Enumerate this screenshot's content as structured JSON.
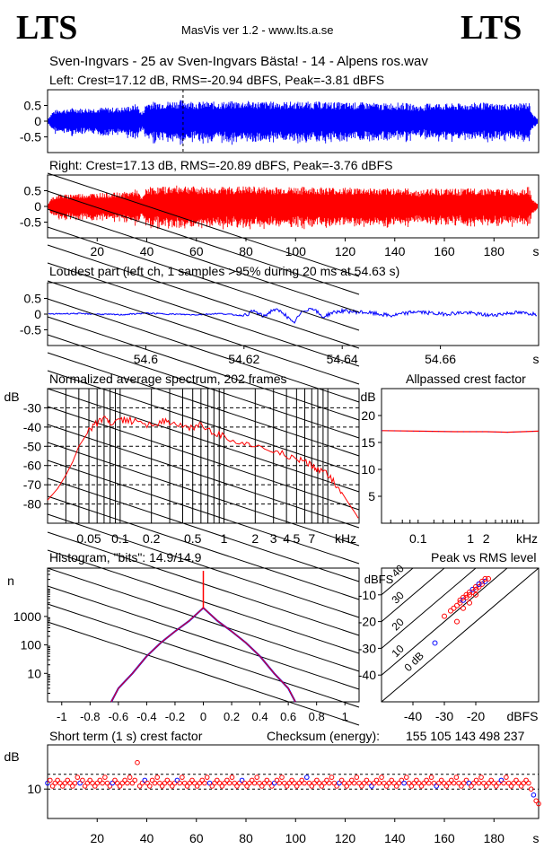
{
  "header": {
    "logo_left": "LTS",
    "logo_right": "LTS",
    "app": "MasVis ver 1.2 - www.lts.a.se",
    "track_title": "Sven-Ingvars - 25 av Sven-Ingvars Bästa! - 14 - Alpens ros.wav"
  },
  "colors": {
    "left": "#0000ff",
    "right": "#ff0000",
    "axis": "#000000"
  },
  "chart_data": [
    {
      "type": "area",
      "id": "left_waveform",
      "title": "Left: Crest=17.12 dB, RMS=-20.94 dBFS, Peak=-3.81 dBFS",
      "y_ticks": [
        "0.5",
        "0",
        "-0.5"
      ],
      "ylim": [
        -1,
        1
      ],
      "xlim": [
        0,
        198
      ],
      "marker_time_s": 54.63,
      "envelope": {
        "t": [
          0,
          2,
          4,
          6,
          8,
          10,
          14,
          18,
          22,
          26,
          30,
          34,
          36,
          38,
          40,
          44,
          50,
          55,
          60,
          70,
          80,
          90,
          100,
          110,
          120,
          130,
          135,
          140,
          145,
          150,
          155,
          160,
          165,
          170,
          175,
          180,
          185,
          190,
          194,
          196,
          198
        ],
        "amp": [
          0.05,
          0.25,
          0.3,
          0.32,
          0.3,
          0.34,
          0.33,
          0.34,
          0.35,
          0.35,
          0.36,
          0.4,
          0.45,
          0.2,
          0.5,
          0.5,
          0.52,
          0.55,
          0.5,
          0.5,
          0.52,
          0.5,
          0.5,
          0.5,
          0.48,
          0.48,
          0.45,
          0.48,
          0.46,
          0.4,
          0.48,
          0.45,
          0.45,
          0.46,
          0.48,
          0.45,
          0.45,
          0.45,
          0.5,
          0.15,
          0.05
        ]
      }
    },
    {
      "type": "area",
      "id": "right_waveform",
      "title": "Right: Crest=17.13 dB, RMS=-20.89 dBFS, Peak=-3.76 dBFS",
      "y_ticks": [
        "0.5",
        "0",
        "-0.5"
      ],
      "ylim": [
        -1,
        1
      ],
      "x_ticks": [
        "20",
        "40",
        "60",
        "80",
        "100",
        "120",
        "140",
        "160",
        "180"
      ],
      "x_unit": "s",
      "xlim": [
        0,
        198
      ],
      "envelope": {
        "t": [
          0,
          2,
          4,
          6,
          8,
          10,
          14,
          18,
          22,
          26,
          30,
          34,
          36,
          38,
          40,
          44,
          50,
          55,
          60,
          70,
          80,
          90,
          100,
          110,
          120,
          130,
          135,
          140,
          145,
          150,
          155,
          160,
          165,
          170,
          175,
          180,
          185,
          190,
          194,
          196,
          198
        ],
        "amp": [
          0.05,
          0.25,
          0.3,
          0.32,
          0.3,
          0.34,
          0.33,
          0.34,
          0.35,
          0.35,
          0.36,
          0.4,
          0.45,
          0.2,
          0.5,
          0.5,
          0.52,
          0.55,
          0.5,
          0.5,
          0.52,
          0.5,
          0.5,
          0.5,
          0.48,
          0.48,
          0.45,
          0.48,
          0.46,
          0.4,
          0.48,
          0.45,
          0.45,
          0.46,
          0.48,
          0.45,
          0.45,
          0.45,
          0.5,
          0.15,
          0.05
        ]
      }
    },
    {
      "type": "line",
      "id": "loudest_part",
      "title": "Loudest part (left  ch, 1 samples >95% during 20 ms at 54.63 s)",
      "y_ticks": [
        "0.5",
        "0",
        "-0.5"
      ],
      "ylim": [
        -1,
        1
      ],
      "x_ticks": [
        "54.6",
        "54.62",
        "54.64",
        "54.66"
      ],
      "x_unit": "s",
      "xlim": [
        54.58,
        54.68
      ],
      "x": [
        54.58,
        54.585,
        54.59,
        54.595,
        54.6,
        54.605,
        54.61,
        54.615,
        54.62,
        54.622,
        54.624,
        54.626,
        54.628,
        54.63,
        54.632,
        54.634,
        54.636,
        54.638,
        54.64,
        54.645,
        54.65,
        54.655,
        54.66,
        54.665,
        54.67,
        54.675,
        54.68
      ],
      "y": [
        0.0,
        0.02,
        0.0,
        -0.02,
        0.03,
        0.0,
        -0.02,
        0.02,
        -0.05,
        0.1,
        -0.08,
        0.15,
        0.05,
        -0.3,
        0.1,
        0.2,
        -0.1,
        0.05,
        0.1,
        0.05,
        -0.05,
        0.08,
        0.0,
        0.05,
        -0.04,
        0.05,
        0.0
      ]
    },
    {
      "type": "line",
      "id": "avg_spectrum",
      "title": "Normalized average spectrum, 202 frames",
      "ylabel": "dB",
      "y_ticks": [
        "-30",
        "-40",
        "-50",
        "-60",
        "-70",
        "-80"
      ],
      "ylim": [
        -90,
        -20
      ],
      "x_scale": "log",
      "x_ticks": [
        "0.05",
        "0.1",
        "0.2",
        "0.5",
        "1",
        "2",
        "3",
        "4",
        "5",
        "7"
      ],
      "x_unit": "kHz",
      "xlim": [
        0.02,
        20
      ],
      "x": [
        0.02,
        0.025,
        0.03,
        0.035,
        0.04,
        0.05,
        0.06,
        0.07,
        0.08,
        0.1,
        0.12,
        0.15,
        0.2,
        0.25,
        0.3,
        0.4,
        0.5,
        0.6,
        0.8,
        1,
        1.5,
        2,
        3,
        4,
        5,
        6,
        7,
        8,
        10,
        12,
        14,
        16,
        18,
        20
      ],
      "y": [
        -78,
        -72,
        -65,
        -58,
        -50,
        -42,
        -38,
        -36,
        -38,
        -37,
        -36,
        -38,
        -39,
        -37,
        -38,
        -40,
        -40,
        -39,
        -43,
        -45,
        -48,
        -50,
        -52,
        -55,
        -57,
        -58,
        -60,
        -62,
        -65,
        -70,
        -75,
        -80,
        -84,
        -88
      ]
    },
    {
      "type": "line",
      "id": "allpassed_crest",
      "title": "Allpassed crest factor",
      "ylabel": "dB",
      "y_ticks": [
        "20",
        "15",
        "10",
        "5"
      ],
      "ylim": [
        0,
        25
      ],
      "x_scale": "log",
      "x_ticks": [
        "0.1",
        "1",
        "2"
      ],
      "x_unit": "kHz",
      "xlim": [
        0.02,
        20
      ],
      "series": [
        {
          "x": [
            0.02,
            0.1,
            0.5,
            1,
            2,
            5,
            10,
            20
          ],
          "y": [
            17.2,
            17.1,
            17.0,
            17.0,
            17.0,
            16.9,
            17.0,
            17.1
          ]
        }
      ]
    },
    {
      "type": "line",
      "id": "histogram",
      "title": "Histogram, \"bits\": 14.9/14.9",
      "ylabel": "n",
      "y_scale": "log",
      "y_ticks": [
        "1000",
        "100",
        "10"
      ],
      "ylim": [
        1,
        50000
      ],
      "x_ticks": [
        "-1",
        "-0.8",
        "-0.6",
        "-0.4",
        "-0.2",
        "0",
        "0.2",
        "0.4",
        "0.6",
        "0.8",
        "1"
      ],
      "xlim": [
        -1.1,
        1.1
      ],
      "x": [
        -0.65,
        -0.6,
        -0.5,
        -0.4,
        -0.3,
        -0.2,
        -0.1,
        0,
        0.1,
        0.2,
        0.3,
        0.4,
        0.5,
        0.6,
        0.65
      ],
      "y": [
        1,
        3,
        10,
        40,
        120,
        300,
        700,
        2000,
        700,
        300,
        120,
        40,
        10,
        3,
        1
      ],
      "spike_at_zero": 40000
    },
    {
      "type": "scatter",
      "id": "peak_vs_rms",
      "title": "Peak vs RMS level",
      "ylabel": "dBFS",
      "y_ticks": [
        "-10",
        "-20",
        "-30",
        "-40"
      ],
      "ylim": [
        -50,
        0
      ],
      "x_ticks": [
        "-40",
        "-30",
        "-20"
      ],
      "x_unit": "dBFS",
      "xlim": [
        -50,
        0
      ],
      "diagonal_labels": [
        "40",
        "30",
        "20",
        "10",
        "0 dB"
      ],
      "x": [
        -33,
        -30,
        -28,
        -27,
        -26,
        -25,
        -25,
        -24,
        -24,
        -23,
        -23,
        -22,
        -22,
        -21,
        -21,
        -20,
        -20,
        -19,
        -19,
        -18,
        -18,
        -17,
        -17,
        -16,
        -24,
        -26,
        -22,
        -20,
        -19
      ],
      "y": [
        -28,
        -18,
        -16,
        -15,
        -14,
        -13,
        -12,
        -12,
        -11,
        -11,
        -10,
        -10,
        -9,
        -9,
        -8,
        -8,
        -7,
        -7,
        -6,
        -6,
        -5,
        -5,
        -4,
        -4,
        -15,
        -20,
        -13,
        -10,
        -6
      ]
    },
    {
      "type": "scatter",
      "id": "short_term_crest",
      "title": "Short term (1 s) crest factor",
      "checksum_label": "Checksum (energy):",
      "checksum_value": "155 105 143 498 237",
      "ylabel": "dB",
      "y_ticks": [
        "10"
      ],
      "ylim": [
        0,
        25
      ],
      "x_ticks": [
        "20",
        "40",
        "60",
        "80",
        "100",
        "120",
        "140",
        "160",
        "180"
      ],
      "x_unit": "s",
      "xlim": [
        0,
        198
      ],
      "dashed_levels": [
        10,
        15
      ],
      "y": [
        12,
        13,
        11,
        12,
        13,
        12,
        11,
        12,
        13,
        12,
        11,
        12,
        14,
        12,
        13,
        11,
        12,
        13,
        12,
        11,
        12,
        13,
        12,
        14,
        12,
        11,
        12,
        13,
        12,
        11,
        12,
        13,
        12,
        14,
        12,
        13,
        19,
        11,
        12,
        13,
        12,
        11,
        13,
        12,
        14,
        12,
        11,
        12,
        13,
        12,
        11,
        12,
        13,
        12,
        14,
        12,
        11,
        12,
        13,
        12,
        11,
        12,
        13,
        12,
        14,
        12,
        11,
        12,
        13,
        12,
        11,
        12,
        13,
        12,
        14,
        12,
        11,
        12,
        13,
        12,
        11,
        12,
        13,
        12,
        14,
        12,
        11,
        12,
        13,
        12,
        11,
        12,
        13,
        12,
        14,
        12,
        11,
        12,
        13,
        12,
        11,
        12,
        13,
        12,
        14,
        12,
        11,
        12,
        13,
        12,
        11,
        12,
        13,
        12,
        14,
        12,
        11,
        12,
        13,
        12,
        11,
        12,
        13,
        12,
        14,
        12,
        11,
        12,
        13,
        12,
        11,
        12,
        13,
        12,
        14,
        12,
        11,
        12,
        13,
        12,
        11,
        12,
        13,
        12,
        14,
        12,
        11,
        12,
        13,
        12,
        11,
        12,
        13,
        12,
        14,
        12,
        11,
        12,
        13,
        12,
        11,
        12,
        13,
        12,
        14,
        12,
        11,
        12,
        13,
        12,
        11,
        12,
        13,
        12,
        14,
        12,
        11,
        12,
        13,
        12,
        11,
        12,
        13,
        12,
        14,
        12,
        11,
        12,
        13,
        12,
        11,
        12,
        13,
        12,
        10,
        8,
        6,
        5
      ]
    }
  ]
}
